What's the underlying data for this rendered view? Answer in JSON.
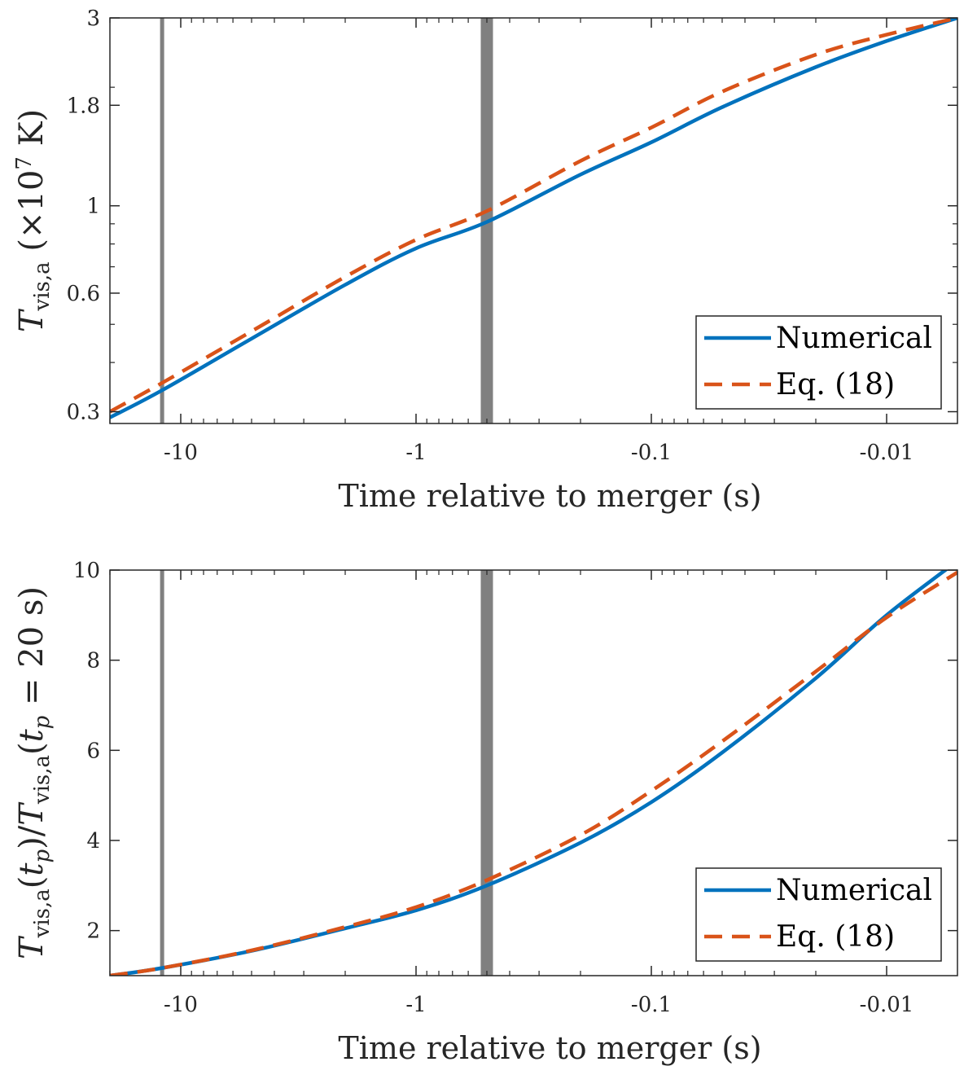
{
  "chart_data": [
    {
      "type": "line",
      "xlabel": "Time relative to merger (s)",
      "ylabel_parts": {
        "symbol": "T",
        "subscript": "vis,a",
        "rest": "(×10",
        "exponent": "7",
        "unit": " K)"
      },
      "x_scale": "reverse-log",
      "x_range": [
        -20,
        -0.005
      ],
      "x_ticks": [
        -10,
        -1,
        -0.1,
        -0.01
      ],
      "x_tick_labels": [
        "-10",
        "-1",
        "-0.1",
        "-0.01"
      ],
      "y_scale": "log",
      "y_range": [
        0.28,
        3
      ],
      "y_ticks": [
        0.3,
        0.6,
        1,
        1.8,
        3
      ],
      "y_tick_labels": [
        "0.3",
        "0.6",
        "1",
        "1.8",
        "3"
      ],
      "vertical_lines": [
        {
          "x": -12,
          "style": "thin",
          "color": "#808080"
        },
        {
          "x": -0.5,
          "style": "thick",
          "color": "#808080"
        }
      ],
      "legend": {
        "position": "bottom-right",
        "entries": [
          "Numerical",
          "Eq. (18)"
        ]
      },
      "series": [
        {
          "name": "Numerical",
          "color": "#0072BD",
          "dash": "solid",
          "x": [
            -20,
            -12,
            -5,
            -2,
            -1,
            -0.5,
            -0.2,
            -0.1,
            -0.05,
            -0.02,
            -0.01,
            -0.005
          ],
          "y": [
            0.29,
            0.34,
            0.46,
            0.63,
            0.78,
            0.91,
            1.2,
            1.45,
            1.78,
            2.25,
            2.62,
            3.0
          ]
        },
        {
          "name": "Eq. (18)",
          "color": "#D95319",
          "dash": "dashed",
          "x": [
            -20,
            -12,
            -5,
            -2,
            -1,
            -0.5,
            -0.2,
            -0.1,
            -0.05,
            -0.02,
            -0.01,
            -0.005
          ],
          "y": [
            0.3,
            0.355,
            0.48,
            0.66,
            0.82,
            0.97,
            1.3,
            1.58,
            1.95,
            2.42,
            2.72,
            3.0
          ]
        }
      ]
    },
    {
      "type": "line",
      "xlabel": "Time relative to merger (s)",
      "ylabel_parts": {
        "symbol": "T",
        "subscript": "vis,a",
        "arg1": "(t",
        "argsub": "p",
        "mid": ")/T",
        "subscript2": "vis,a",
        "arg2": "(t",
        "argsub2": "p",
        "tail": " = 20 s)"
      },
      "x_scale": "reverse-log",
      "x_range": [
        -20,
        -0.005
      ],
      "x_ticks": [
        -10,
        -1,
        -0.1,
        -0.01
      ],
      "x_tick_labels": [
        "-10",
        "-1",
        "-0.1",
        "-0.01"
      ],
      "y_scale": "linear",
      "y_range": [
        1,
        10
      ],
      "y_ticks": [
        2,
        4,
        6,
        8,
        10
      ],
      "y_tick_labels": [
        "2",
        "4",
        "6",
        "8",
        "10"
      ],
      "vertical_lines": [
        {
          "x": -12,
          "style": "thin",
          "color": "#808080"
        },
        {
          "x": -0.5,
          "style": "thick",
          "color": "#808080"
        }
      ],
      "legend": {
        "position": "bottom-right",
        "entries": [
          "Numerical",
          "Eq. (18)"
        ]
      },
      "series": [
        {
          "name": "Numerical",
          "color": "#0072BD",
          "dash": "solid",
          "x": [
            -20,
            -12,
            -5,
            -2,
            -1,
            -0.5,
            -0.2,
            -0.1,
            -0.05,
            -0.02,
            -0.01,
            -0.005
          ],
          "y": [
            1.0,
            1.17,
            1.55,
            2.05,
            2.45,
            3.0,
            3.95,
            4.85,
            5.95,
            7.6,
            9.0,
            10.2
          ]
        },
        {
          "name": "Eq. (18)",
          "color": "#D95319",
          "dash": "dashed",
          "x": [
            -20,
            -12,
            -5,
            -2,
            -1,
            -0.5,
            -0.2,
            -0.1,
            -0.05,
            -0.02,
            -0.01,
            -0.005
          ],
          "y": [
            1.0,
            1.17,
            1.56,
            2.08,
            2.52,
            3.12,
            4.12,
            5.1,
            6.2,
            7.75,
            8.95,
            9.95
          ]
        }
      ]
    }
  ]
}
